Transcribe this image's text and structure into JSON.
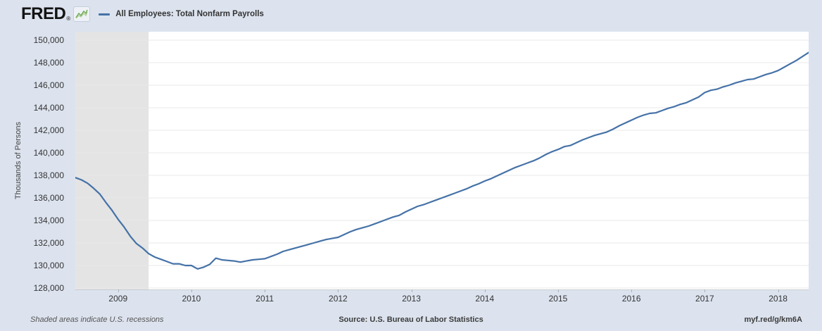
{
  "header": {
    "logo_text": "FRED",
    "registered_mark": "®",
    "icons": {
      "sparkline": "fred-sparkline-icon"
    },
    "legend": {
      "series_label": "All Employees: Total Nonfarm Payrolls",
      "line_color": "#4572a7"
    }
  },
  "footer": {
    "recession_note": "Shaded areas indicate U.S. recessions",
    "source": "Source: U.S. Bureau of Labor Statistics",
    "short_link": "myf.red/g/km6A"
  },
  "colors": {
    "page_background": "#dce3ee",
    "plot_background": "#ffffff",
    "recession_band": "#e4e4e4",
    "gridline": "#e9e9e9",
    "line": "#4572a7",
    "tick_text": "#333333"
  },
  "chart_data": {
    "type": "line",
    "title": "All Employees: Total Nonfarm Payrolls",
    "ylabel": "Thousands of Persons",
    "xlabel": "",
    "grid": true,
    "legend_position": "top-left",
    "frequency": "monthly",
    "x_start": "2008-06",
    "x_end": "2018-06",
    "ylim": [
      127875,
      150750
    ],
    "y_ticks": [
      {
        "label": "150,000",
        "value": 150000
      },
      {
        "label": "148,000",
        "value": 148000
      },
      {
        "label": "146,000",
        "value": 146000
      },
      {
        "label": "144,000",
        "value": 144000
      },
      {
        "label": "142,000",
        "value": 142000
      },
      {
        "label": "140,000",
        "value": 140000
      },
      {
        "label": "138,000",
        "value": 138000
      },
      {
        "label": "136,000",
        "value": 136000
      },
      {
        "label": "134,000",
        "value": 134000
      },
      {
        "label": "132,000",
        "value": 132000
      },
      {
        "label": "130,000",
        "value": 130000
      },
      {
        "label": "128,000",
        "value": 128000
      }
    ],
    "x_ticks": [
      {
        "label": "2009",
        "month_index": 7
      },
      {
        "label": "2010",
        "month_index": 19
      },
      {
        "label": "2011",
        "month_index": 31
      },
      {
        "label": "2012",
        "month_index": 43
      },
      {
        "label": "2013",
        "month_index": 55
      },
      {
        "label": "2014",
        "month_index": 67
      },
      {
        "label": "2015",
        "month_index": 79
      },
      {
        "label": "2016",
        "month_index": 91
      },
      {
        "label": "2017",
        "month_index": 103
      },
      {
        "label": "2018",
        "month_index": 115
      }
    ],
    "recession_band": {
      "start_month_index": 0,
      "end_month_index": 12
    },
    "series": [
      {
        "name": "All Employees: Total Nonfarm Payrolls",
        "color": "#4572a7",
        "monthly_values": [
          137800,
          137600,
          137300,
          136850,
          136350,
          135600,
          134900,
          134100,
          133400,
          132600,
          131950,
          131550,
          131050,
          130750,
          130550,
          130350,
          130150,
          130150,
          130000,
          130000,
          129700,
          129850,
          130100,
          130650,
          130500,
          130450,
          130400,
          130300,
          130400,
          130500,
          130550,
          130600,
          130800,
          131000,
          131250,
          131400,
          131550,
          131700,
          131850,
          132000,
          132150,
          132300,
          132400,
          132500,
          132750,
          133000,
          133200,
          133350,
          133500,
          133700,
          133900,
          134100,
          134300,
          134450,
          134750,
          135000,
          135250,
          135400,
          135600,
          135800,
          136000,
          136200,
          136400,
          136600,
          136800,
          137050,
          137250,
          137500,
          137700,
          137950,
          138200,
          138450,
          138700,
          138900,
          139100,
          139300,
          139550,
          139850,
          140100,
          140300,
          140550,
          140650,
          140900,
          141150,
          141350,
          141550,
          141700,
          141850,
          142100,
          142400,
          142650,
          142900,
          143150,
          143350,
          143500,
          143550,
          143750,
          143950,
          144100,
          144300,
          144450,
          144700,
          144950,
          145350,
          145550,
          145650,
          145850,
          146000,
          146200,
          146350,
          146500,
          146550,
          146750,
          146950,
          147100,
          147300,
          147600,
          147900,
          148200,
          148550,
          148900
        ]
      }
    ]
  }
}
